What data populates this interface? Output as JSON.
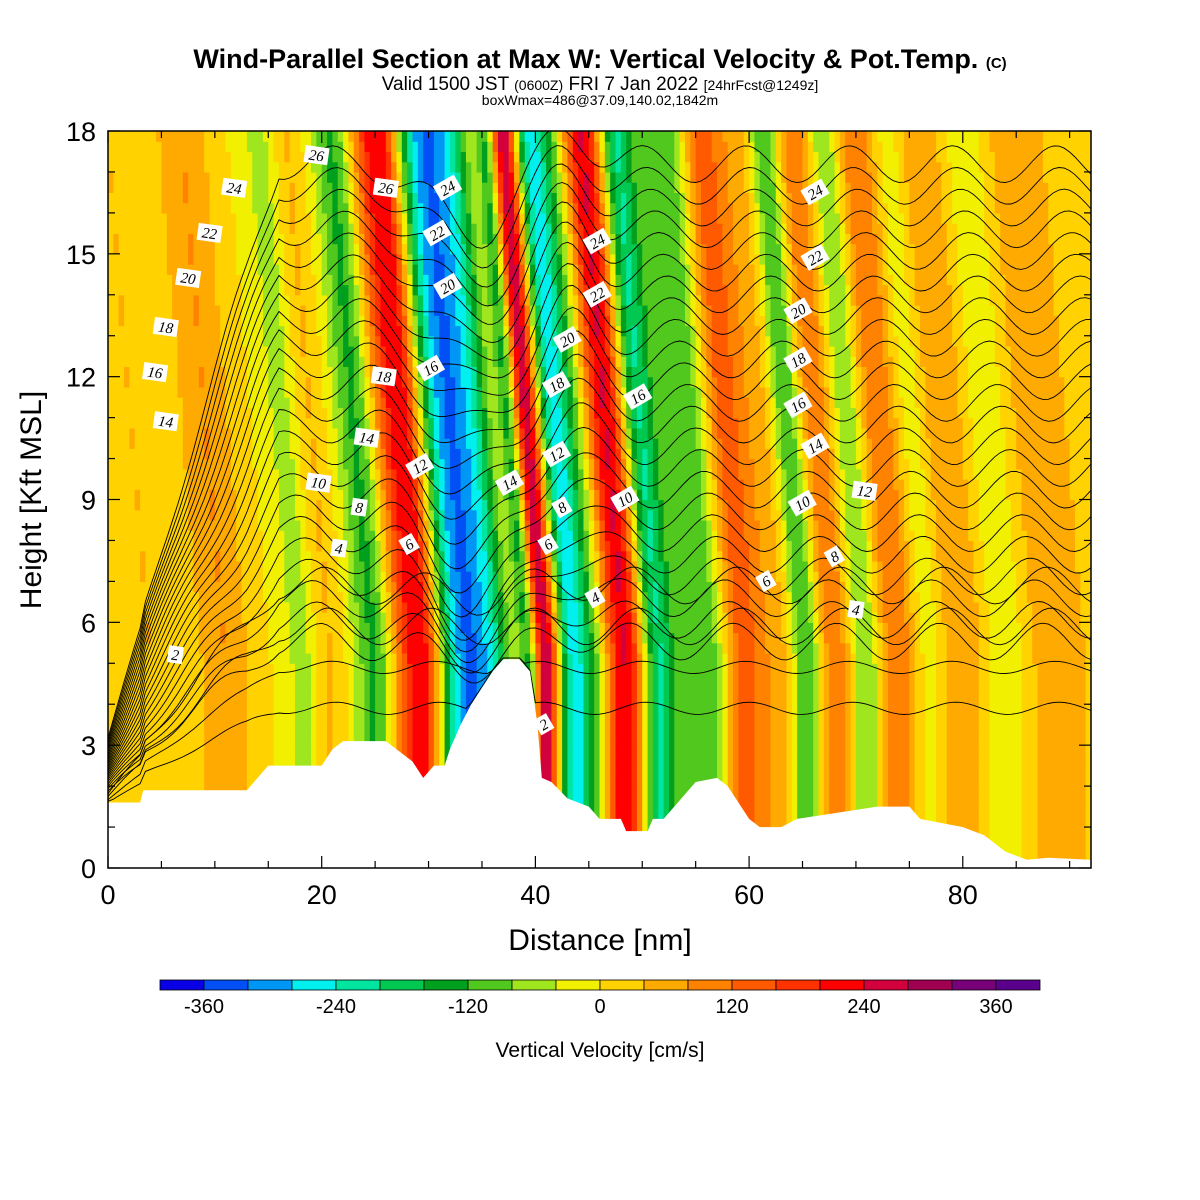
{
  "header": {
    "title": "Wind-Parallel Section at Max W: Vertical Velocity & Pot.Temp.",
    "title_mark": "(C)",
    "valid_main": "Valid 1500 JST",
    "valid_utc": "(0600Z)",
    "valid_date": "FRI 7 Jan 2022",
    "valid_fcst": "[24hrFcst@1249z]",
    "box_info": "boxWmax=486@37.09,140.02,1842m"
  },
  "chart_data": {
    "type": "heatmap",
    "xlabel": "Distance [nm]",
    "ylabel": "Height [Kft MSL]",
    "xlim": [
      0,
      92
    ],
    "ylim": [
      0,
      18
    ],
    "x_ticks": [
      0,
      20,
      40,
      60,
      80
    ],
    "y_ticks": [
      0,
      3,
      6,
      9,
      12,
      15,
      18
    ],
    "colorbar": {
      "title": "Vertical Velocity [cm/s]",
      "levels": [
        -400,
        -360,
        -320,
        -280,
        -240,
        -200,
        -160,
        -120,
        -80,
        -40,
        0,
        40,
        80,
        120,
        160,
        200,
        240,
        280,
        320,
        360,
        400
      ],
      "tick_labels": [
        "-360",
        "-240",
        "-120",
        "0",
        "120",
        "240",
        "360"
      ],
      "tick_values": [
        -360,
        -240,
        -120,
        0,
        120,
        240,
        360
      ],
      "colors": [
        "#0a00e6",
        "#0050f5",
        "#0096f5",
        "#00f0f0",
        "#00e6a0",
        "#00c850",
        "#00a01e",
        "#50c81e",
        "#a0e61e",
        "#f0f000",
        "#ffd200",
        "#ffaa00",
        "#ff8200",
        "#ff5a00",
        "#ff3200",
        "#ff0000",
        "#d2003c",
        "#a00050",
        "#780078",
        "#5a008c"
      ]
    },
    "vertical_velocity_bands": [
      {
        "x": 4,
        "w": 3.0,
        "v": 40
      },
      {
        "x": 11,
        "w": 2.5,
        "v": 80
      },
      {
        "x": 18.5,
        "w": 2.0,
        "v": -60
      },
      {
        "x": 20.5,
        "w": 1.5,
        "v": 60
      },
      {
        "x": 25,
        "w": 1.8,
        "v": -130
      },
      {
        "x": 27.5,
        "w": 1.5,
        "v": 80
      },
      {
        "x": 29.5,
        "w": 1.8,
        "v": 230
      },
      {
        "x": 32,
        "w": 1.6,
        "v": -80
      },
      {
        "x": 34,
        "w": 2.2,
        "v": -300
      },
      {
        "x": 36.5,
        "w": 1.6,
        "v": -130
      },
      {
        "x": 38,
        "w": 1.4,
        "v": 20
      },
      {
        "x": 39.5,
        "w": 1.0,
        "v": -200
      },
      {
        "x": 41,
        "w": 1.4,
        "v": 300
      },
      {
        "x": 43.5,
        "w": 1.5,
        "v": -250
      },
      {
        "x": 45.5,
        "w": 1.5,
        "v": -100
      },
      {
        "x": 48.5,
        "w": 2.0,
        "v": 250
      },
      {
        "x": 51.5,
        "w": 1.6,
        "v": -220
      },
      {
        "x": 54,
        "w": 1.6,
        "v": -40
      },
      {
        "x": 56.5,
        "w": 2.0,
        "v": -110
      },
      {
        "x": 59.5,
        "w": 2.0,
        "v": 150
      },
      {
        "x": 63,
        "w": 2.0,
        "v": 60
      },
      {
        "x": 65.5,
        "w": 1.5,
        "v": -150
      },
      {
        "x": 68,
        "w": 2.0,
        "v": 120
      },
      {
        "x": 71,
        "w": 1.5,
        "v": -100
      },
      {
        "x": 74,
        "w": 2.0,
        "v": 120
      },
      {
        "x": 77,
        "w": 1.5,
        "v": -50
      },
      {
        "x": 80,
        "w": 2.5,
        "v": 80
      },
      {
        "x": 84,
        "w": 2.0,
        "v": -40
      },
      {
        "x": 89,
        "w": 3.0,
        "v": 80
      }
    ],
    "terrain_top": [
      [
        0,
        1.6
      ],
      [
        3,
        1.6
      ],
      [
        3.3,
        1.9
      ],
      [
        13,
        1.9
      ],
      [
        15,
        2.5
      ],
      [
        20,
        2.5
      ],
      [
        21,
        2.9
      ],
      [
        22,
        3.1
      ],
      [
        26,
        3.1
      ],
      [
        27,
        2.9
      ],
      [
        28.5,
        2.6
      ],
      [
        29.5,
        2.2
      ],
      [
        30.5,
        2.5
      ],
      [
        31.5,
        2.5
      ],
      [
        32,
        2.9
      ],
      [
        33,
        3.5
      ],
      [
        34,
        4.0
      ],
      [
        35,
        4.4
      ],
      [
        36,
        4.8
      ],
      [
        37,
        5.1
      ],
      [
        38.5,
        5.1
      ],
      [
        39.5,
        4.8
      ],
      [
        40.2,
        3.5
      ],
      [
        40.6,
        2.2
      ],
      [
        41.5,
        2.1
      ],
      [
        43,
        1.7
      ],
      [
        45,
        1.5
      ],
      [
        46,
        1.2
      ],
      [
        48,
        1.2
      ],
      [
        48.5,
        0.9
      ],
      [
        50.5,
        0.9
      ],
      [
        51,
        1.2
      ],
      [
        52,
        1.2
      ],
      [
        53,
        1.5
      ],
      [
        54,
        1.8
      ],
      [
        55,
        2.1
      ],
      [
        57,
        2.2
      ],
      [
        58,
        2.0
      ],
      [
        59,
        1.6
      ],
      [
        60,
        1.2
      ],
      [
        61,
        1.0
      ],
      [
        63,
        1.0
      ],
      [
        64.5,
        1.2
      ],
      [
        72,
        1.5
      ],
      [
        75,
        1.5
      ],
      [
        76,
        1.2
      ],
      [
        80,
        1.0
      ],
      [
        82,
        0.8
      ],
      [
        84,
        0.4
      ],
      [
        86,
        0.2
      ],
      [
        88,
        0.25
      ],
      [
        92,
        0.2
      ]
    ],
    "theta_contour_levels": [
      1,
      2,
      3,
      4,
      5,
      6,
      7,
      8,
      9,
      10,
      11,
      12,
      13,
      14,
      15,
      16,
      17,
      18,
      19,
      20,
      21,
      22,
      23,
      24,
      25,
      26,
      27
    ],
    "theta_labels": [
      {
        "text": "26",
        "x": 19.5,
        "y": 17.4
      },
      {
        "text": "24",
        "x": 11.8,
        "y": 16.6
      },
      {
        "text": "22",
        "x": 9.5,
        "y": 15.5
      },
      {
        "text": "20",
        "x": 7.5,
        "y": 14.4
      },
      {
        "text": "18",
        "x": 5.4,
        "y": 13.2
      },
      {
        "text": "16",
        "x": 4.4,
        "y": 12.1
      },
      {
        "text": "14",
        "x": 5.4,
        "y": 10.9
      },
      {
        "text": "10",
        "x": 19.7,
        "y": 9.4
      },
      {
        "text": "8",
        "x": 23.5,
        "y": 8.8
      },
      {
        "text": "4",
        "x": 21.6,
        "y": 7.8
      },
      {
        "text": "2",
        "x": 6.3,
        "y": 5.2
      },
      {
        "text": "26",
        "x": 26.0,
        "y": 16.6
      },
      {
        "text": "24",
        "x": 31.8,
        "y": 16.6
      },
      {
        "text": "22",
        "x": 30.8,
        "y": 15.5
      },
      {
        "text": "20",
        "x": 31.8,
        "y": 14.2
      },
      {
        "text": "18",
        "x": 25.8,
        "y": 12.0
      },
      {
        "text": "16",
        "x": 30.2,
        "y": 12.2
      },
      {
        "text": "14",
        "x": 24.2,
        "y": 10.5
      },
      {
        "text": "12",
        "x": 29.2,
        "y": 9.8
      },
      {
        "text": "6",
        "x": 28.2,
        "y": 7.9
      },
      {
        "text": "14",
        "x": 37.6,
        "y": 9.4
      },
      {
        "text": "2",
        "x": 40.8,
        "y": 3.5
      },
      {
        "text": "24",
        "x": 45.8,
        "y": 15.3
      },
      {
        "text": "22",
        "x": 45.8,
        "y": 14.0
      },
      {
        "text": "20",
        "x": 43.0,
        "y": 12.9
      },
      {
        "text": "18",
        "x": 42.0,
        "y": 11.8
      },
      {
        "text": "12",
        "x": 42.0,
        "y": 10.1
      },
      {
        "text": "8",
        "x": 42.5,
        "y": 8.8
      },
      {
        "text": "6",
        "x": 41.2,
        "y": 7.9
      },
      {
        "text": "4",
        "x": 45.6,
        "y": 6.6
      },
      {
        "text": "16",
        "x": 49.6,
        "y": 11.5
      },
      {
        "text": "10",
        "x": 48.4,
        "y": 9.0
      },
      {
        "text": "24",
        "x": 66.2,
        "y": 16.5
      },
      {
        "text": "22",
        "x": 66.2,
        "y": 14.9
      },
      {
        "text": "20",
        "x": 64.6,
        "y": 13.6
      },
      {
        "text": "18",
        "x": 64.6,
        "y": 12.4
      },
      {
        "text": "16",
        "x": 64.6,
        "y": 11.3
      },
      {
        "text": "14",
        "x": 66.2,
        "y": 10.3
      },
      {
        "text": "10",
        "x": 65.0,
        "y": 8.9
      },
      {
        "text": "12",
        "x": 70.8,
        "y": 9.2
      },
      {
        "text": "8",
        "x": 68.0,
        "y": 7.6
      },
      {
        "text": "6",
        "x": 61.6,
        "y": 7.0
      },
      {
        "text": "4",
        "x": 70.0,
        "y": 6.3
      }
    ]
  }
}
